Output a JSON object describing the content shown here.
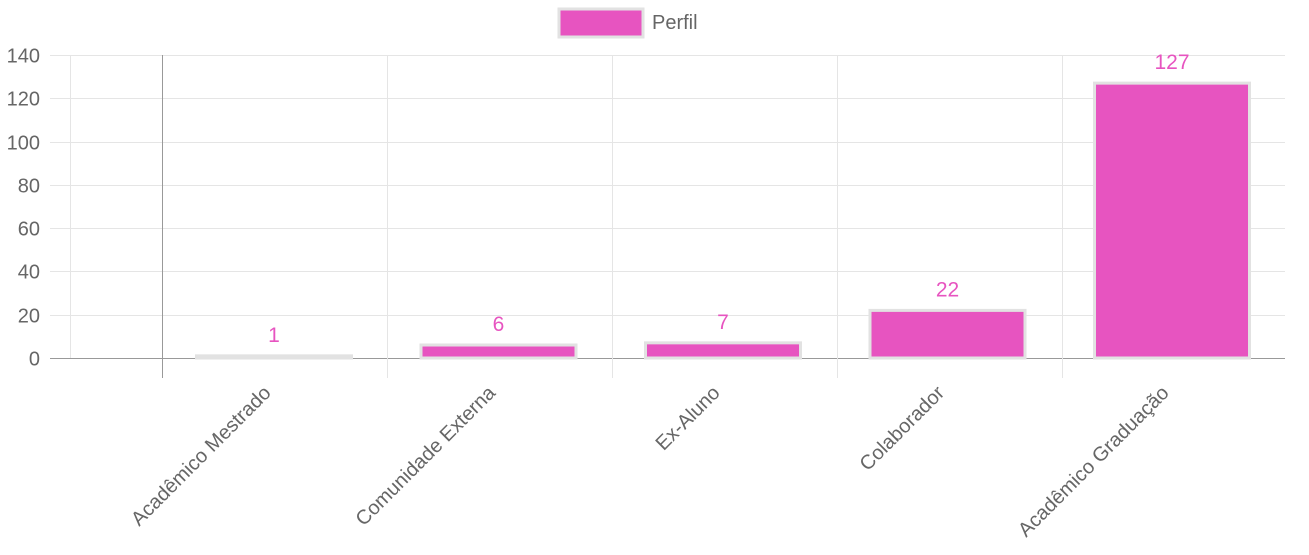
{
  "chart_data": {
    "type": "bar",
    "categories": [
      "Acadêmico Mestrado",
      "Comunidade Externa",
      "Ex-Aluno",
      "Colaborador",
      "Acadêmico Graduação"
    ],
    "series": [
      {
        "name": "Perfil",
        "values": [
          1,
          6,
          7,
          22,
          127
        ]
      }
    ],
    "data_labels": [
      "1",
      "6",
      "7",
      "22",
      "127"
    ],
    "y_ticks": [
      "0",
      "20",
      "40",
      "60",
      "80",
      "100",
      "120",
      "140"
    ],
    "ylim": [
      0,
      140
    ],
    "grid": true,
    "legend_position": "top-center",
    "colors": {
      "bar_fill": "#e754c0",
      "bar_border": "#e2e2e2",
      "data_label": "#e754c0",
      "grid": "#e5e5e5",
      "axis": "#999999"
    }
  }
}
